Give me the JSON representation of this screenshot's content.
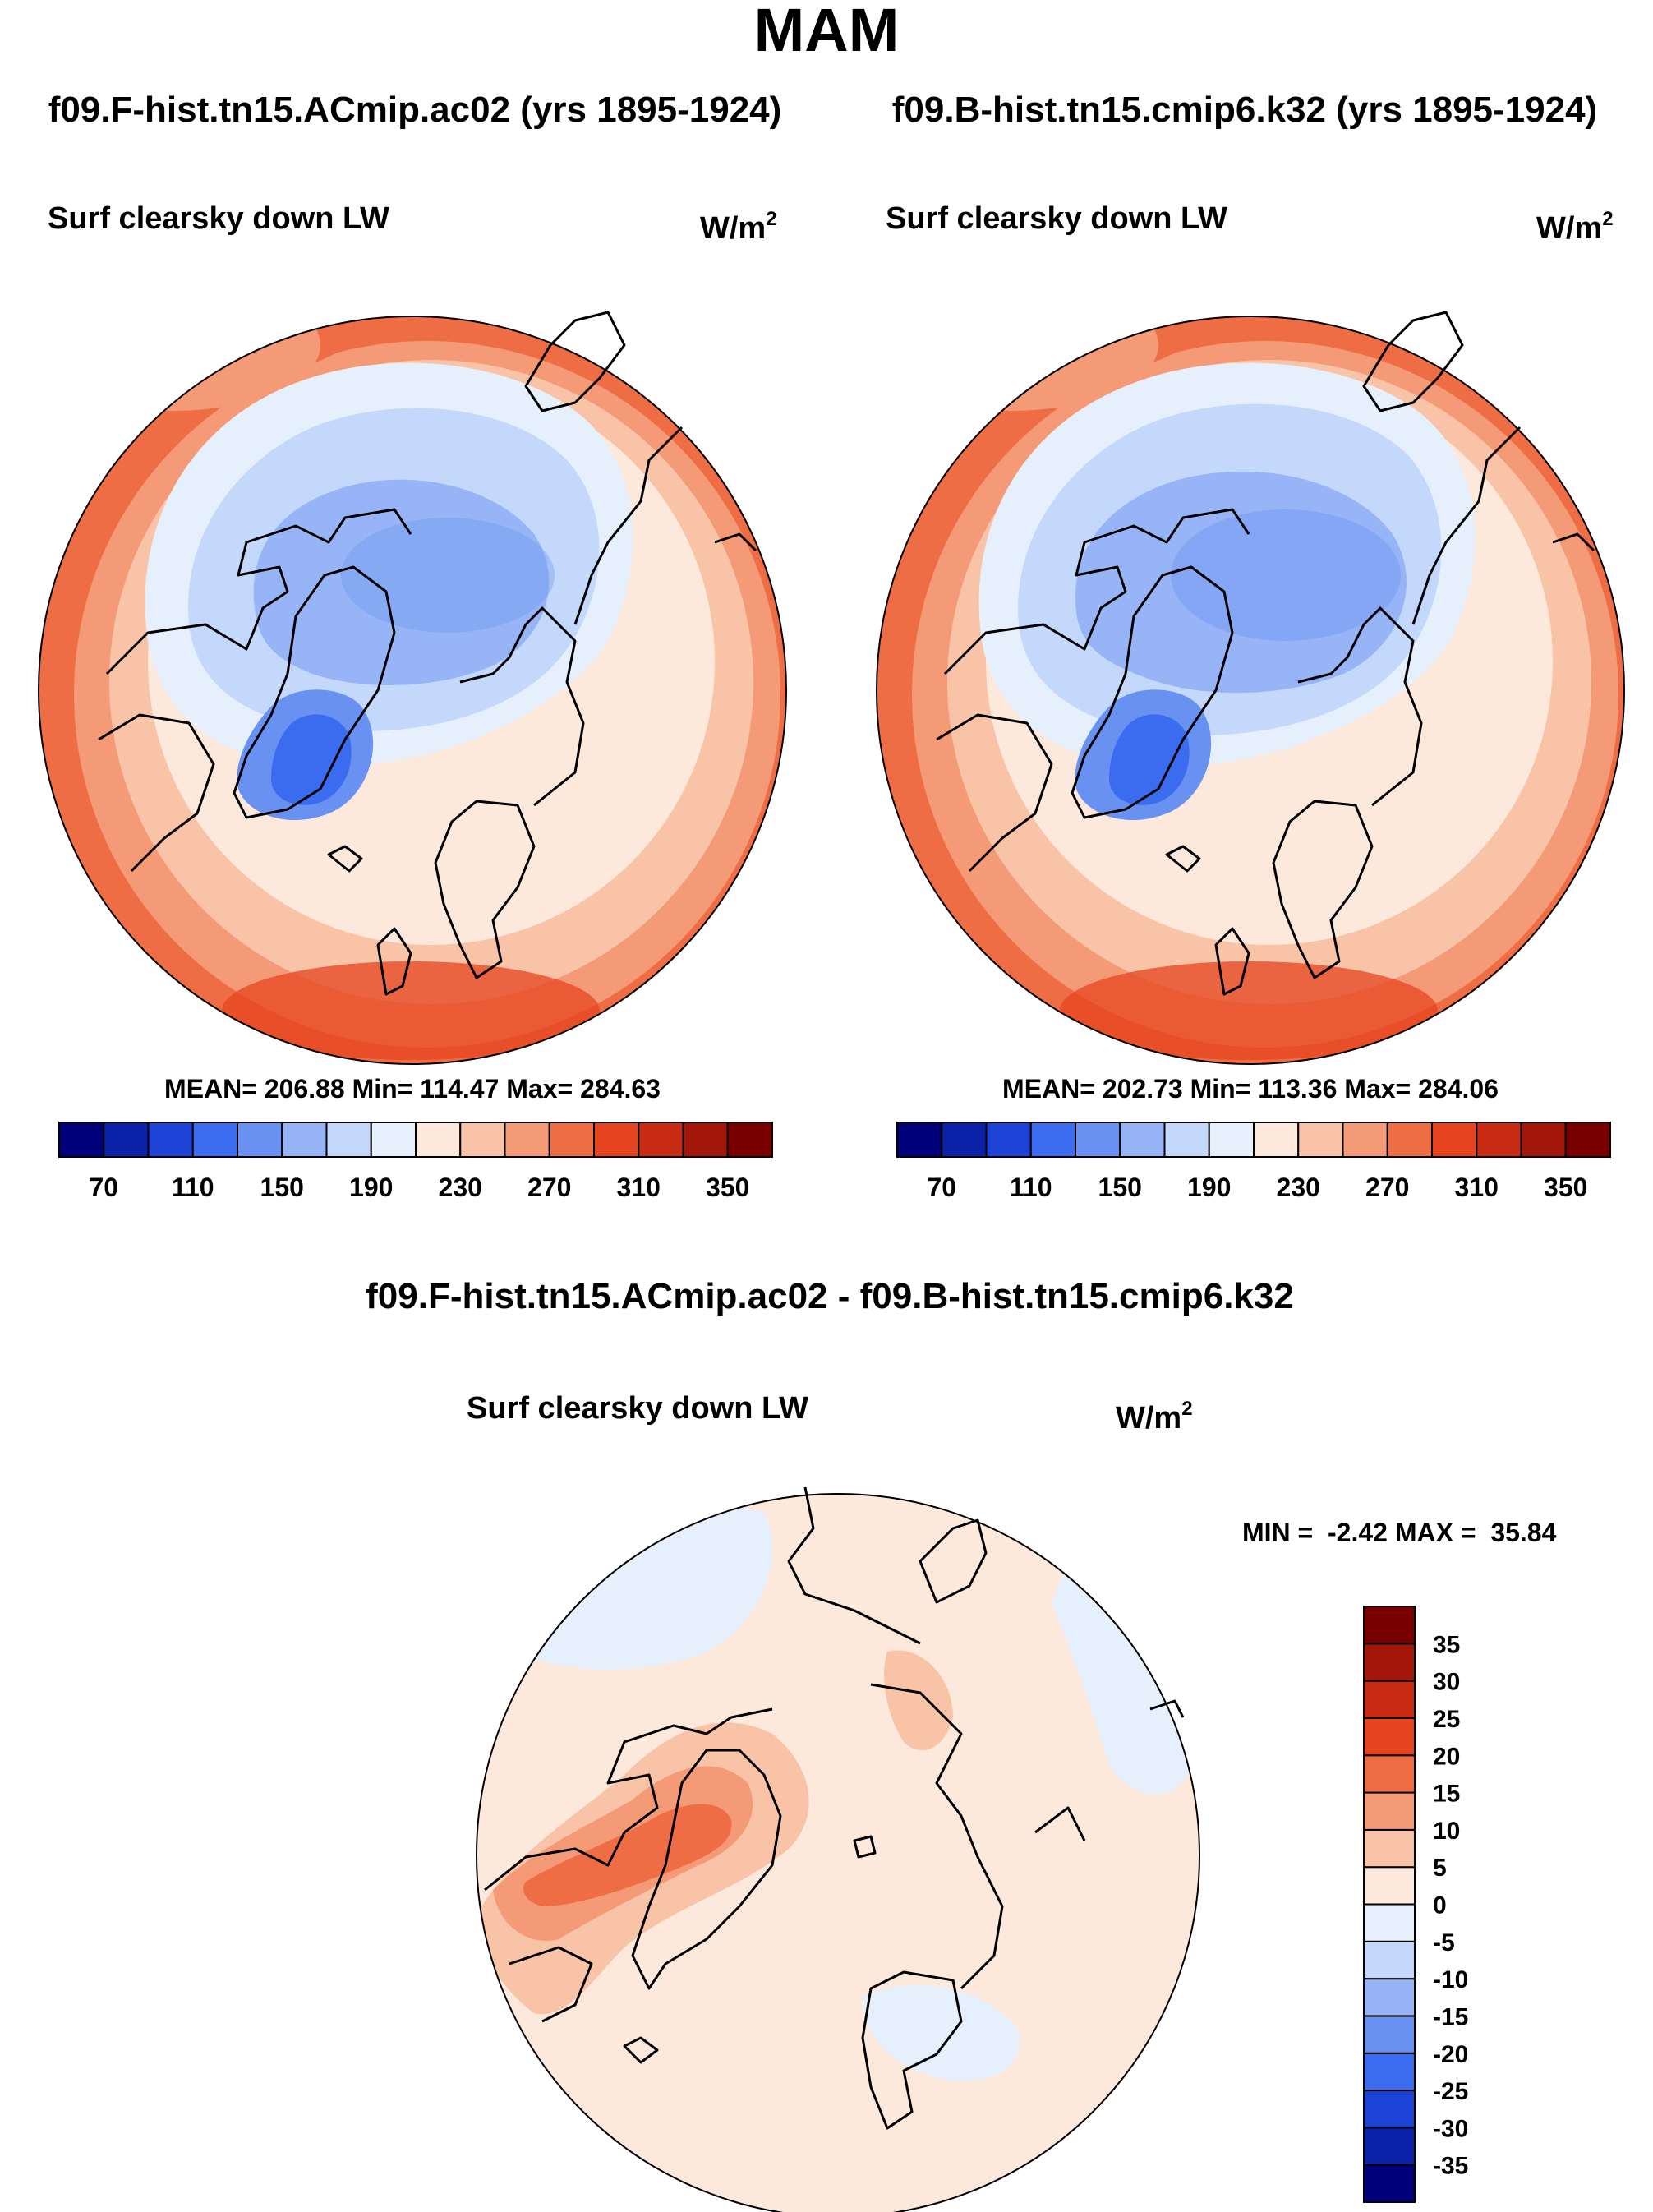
{
  "figure": {
    "season": "MAM",
    "diff_title": "f09.F-hist.tn15.ACmip.ac02 - f09.B-hist.tn15.cmip6.k32"
  },
  "panels": [
    {
      "case_title": "f09.F-hist.tn15.ACmip.ac02 (yrs 1895-1924)",
      "variable": "Surf clearsky down LW",
      "units_base": "W/m",
      "units_exp": "2",
      "stats": "MEAN= 206.88  Min= 114.47  Max= 284.63"
    },
    {
      "case_title": "f09.B-hist.tn15.cmip6.k32 (yrs 1895-1924)",
      "variable": "Surf clearsky down LW",
      "units_base": "W/m",
      "units_exp": "2",
      "stats": "MEAN= 202.73  Min= 113.36  Max= 284.06"
    },
    {
      "variable": "Surf clearsky down LW",
      "units_base": "W/m",
      "units_exp": "2",
      "stats": "MIN =  -2.42 MAX =  35.84"
    }
  ],
  "chart_data": [
    {
      "type": "heatmap",
      "projection": "north polar stereographic",
      "title": "f09.F-hist.tn15.ACmip.ac02 (yrs 1895-1924)",
      "variable": "Surf clearsky down LW",
      "units": "W/m2",
      "mean": 206.88,
      "min": 114.47,
      "max": 284.63,
      "colorbar": {
        "levels": [
          50,
          70,
          90,
          110,
          130,
          150,
          170,
          190,
          210,
          230,
          250,
          270,
          290,
          310,
          330,
          350,
          370
        ],
        "tick_labels": [
          "70",
          "110",
          "150",
          "190",
          "230",
          "270",
          "310",
          "350"
        ],
        "colors": [
          "#00007a",
          "#0b22a8",
          "#1c43d6",
          "#3b6cf0",
          "#6891f2",
          "#97b5f6",
          "#c3d8fa",
          "#e6f0fd",
          "#fde8dc",
          "#f9c3a8",
          "#f49a77",
          "#ef6d45",
          "#e5441f",
          "#c92b12",
          "#a3160a",
          "#7a0000"
        ]
      }
    },
    {
      "type": "heatmap",
      "projection": "north polar stereographic",
      "title": "f09.B-hist.tn15.cmip6.k32 (yrs 1895-1924)",
      "variable": "Surf clearsky down LW",
      "units": "W/m2",
      "mean": 202.73,
      "min": 113.36,
      "max": 284.06,
      "colorbar": {
        "levels": [
          50,
          70,
          90,
          110,
          130,
          150,
          170,
          190,
          210,
          230,
          250,
          270,
          290,
          310,
          330,
          350,
          370
        ],
        "tick_labels": [
          "70",
          "110",
          "150",
          "190",
          "230",
          "270",
          "310",
          "350"
        ],
        "colors": [
          "#00007a",
          "#0b22a8",
          "#1c43d6",
          "#3b6cf0",
          "#6891f2",
          "#97b5f6",
          "#c3d8fa",
          "#e6f0fd",
          "#fde8dc",
          "#f9c3a8",
          "#f49a77",
          "#ef6d45",
          "#e5441f",
          "#c92b12",
          "#a3160a",
          "#7a0000"
        ]
      }
    },
    {
      "type": "heatmap",
      "projection": "north polar stereographic",
      "title": "f09.F-hist.tn15.ACmip.ac02 - f09.B-hist.tn15.cmip6.k32",
      "variable": "Surf clearsky down LW",
      "units": "W/m2",
      "min": -2.42,
      "max": 35.84,
      "colorbar": {
        "orientation": "vertical",
        "levels": [
          -40,
          -35,
          -30,
          -25,
          -20,
          -15,
          -10,
          -5,
          0,
          5,
          10,
          15,
          20,
          25,
          30,
          35,
          40
        ],
        "tick_labels": [
          "-35",
          "-30",
          "-25",
          "-20",
          "-15",
          "-10",
          "-5",
          "0",
          "5",
          "10",
          "15",
          "20",
          "25",
          "30",
          "35"
        ],
        "colors": [
          "#00007a",
          "#0b22a8",
          "#1c43d6",
          "#3b6cf0",
          "#6891f2",
          "#97b5f6",
          "#c3d8fa",
          "#e6f0fd",
          "#fde8dc",
          "#f9c3a8",
          "#f49a77",
          "#ef6d45",
          "#e5441f",
          "#c92b12",
          "#a3160a",
          "#7a0000"
        ]
      }
    }
  ]
}
